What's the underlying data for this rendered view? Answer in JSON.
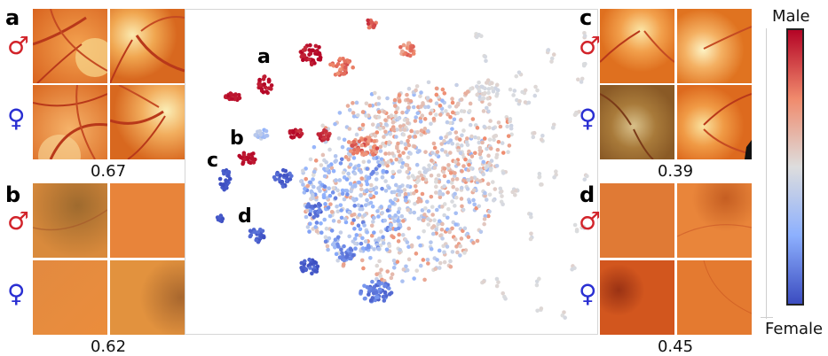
{
  "panels": {
    "a": {
      "letter": "a",
      "score": "0.67"
    },
    "b": {
      "letter": "b",
      "score": "0.62"
    },
    "c": {
      "letter": "c",
      "score": "0.39"
    },
    "d": {
      "letter": "d",
      "score": "0.45"
    }
  },
  "symbols": {
    "male": "♂",
    "female": "♀"
  },
  "cluster_labels": [
    "a",
    "b",
    "c",
    "d"
  ],
  "colorbar": {
    "top_label": "Male",
    "bottom_label": "Female",
    "colors": [
      "#b40426",
      "#f08a6c",
      "#dddddd",
      "#8db0fe",
      "#3b4cc0"
    ]
  },
  "colors": {
    "male_symbol": "#d2232a",
    "female_symbol": "#2a2fd2"
  },
  "fundus_images": {
    "a": [
      "fundus-macula-vessels",
      "fundus-optic-disc",
      "fundus-vessels",
      "fundus-optic-disc"
    ],
    "b": [
      "fundus-dark-macula",
      "fundus-plain",
      "fundus-plain",
      "fundus-dark-macula"
    ],
    "c": [
      "fundus-optic-disc",
      "fundus-optic-disc",
      "fundus-optic-disc-dark",
      "fundus-optic-disc"
    ],
    "d": [
      "fundus-plain",
      "fundus-vessels",
      "fundus-dark-macula",
      "fundus-plain"
    ]
  }
}
